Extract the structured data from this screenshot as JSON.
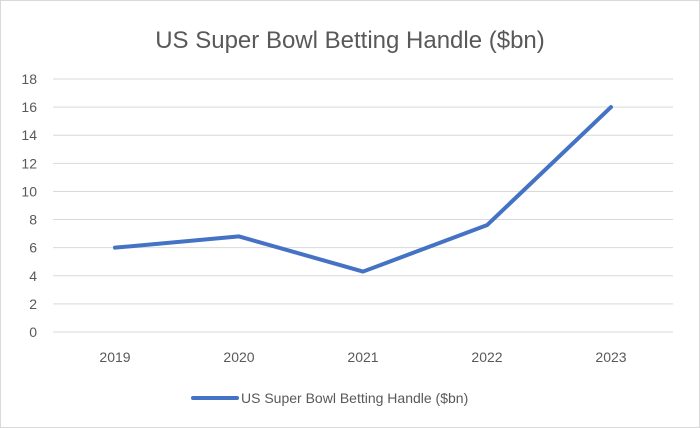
{
  "chart_data": {
    "type": "line",
    "title": "US Super Bowl Betting Handle ($bn)",
    "xlabel": "",
    "ylabel": "",
    "categories": [
      "2019",
      "2020",
      "2021",
      "2022",
      "2023"
    ],
    "series": [
      {
        "name": "US Super Bowl Betting Handle ($bn)",
        "values": [
          6.0,
          6.8,
          4.3,
          7.6,
          16.0
        ],
        "color": "#4472c4"
      }
    ],
    "ylim": [
      0,
      18
    ],
    "yticks": [
      "0",
      "2",
      "4",
      "6",
      "8",
      "10",
      "12",
      "14",
      "16",
      "18"
    ],
    "grid": true,
    "legend_position": "bottom"
  }
}
